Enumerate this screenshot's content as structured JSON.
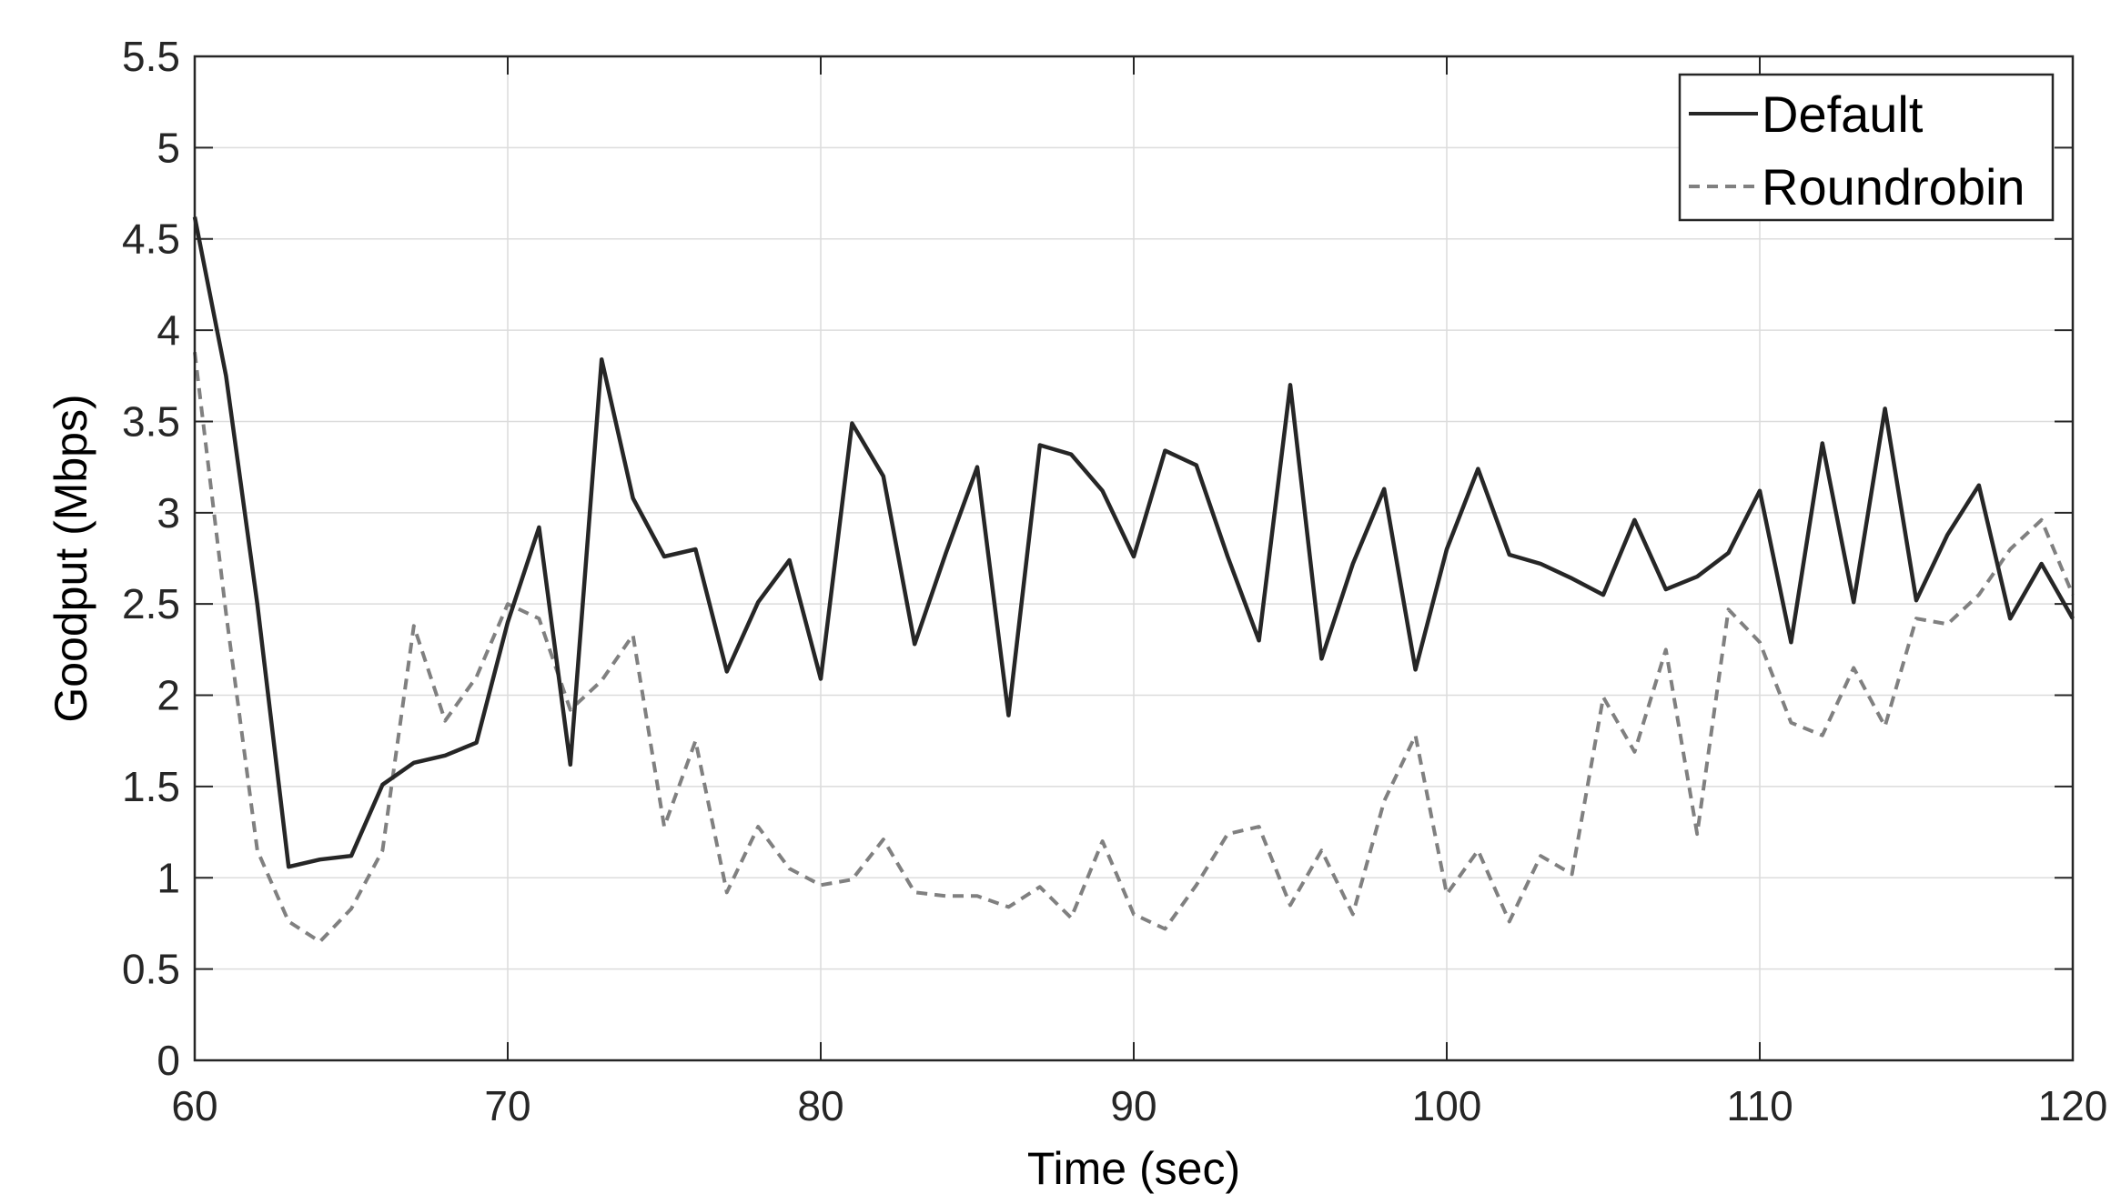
{
  "chart_data": {
    "type": "line",
    "title": "",
    "xlabel": "Time (sec)",
    "ylabel": "Goodput (Mbps)",
    "xlim": [
      60,
      120
    ],
    "ylim": [
      0,
      5.5
    ],
    "xticks": [
      60,
      70,
      80,
      90,
      100,
      110,
      120
    ],
    "yticks": [
      0,
      0.5,
      1,
      1.5,
      2,
      2.5,
      3,
      3.5,
      4,
      4.5,
      5,
      5.5
    ],
    "xtick_labels": [
      "60",
      "70",
      "80",
      "90",
      "100",
      "110",
      "120"
    ],
    "ytick_labels": [
      "0",
      "0.5",
      "1",
      "1.5",
      "2",
      "2.5",
      "3",
      "3.5",
      "4",
      "4.5",
      "5",
      "5.5"
    ],
    "grid": true,
    "legend_position": "top-right",
    "x": [
      60,
      61,
      62,
      63,
      64,
      65,
      66,
      67,
      68,
      69,
      70,
      71,
      72,
      73,
      74,
      75,
      76,
      77,
      78,
      79,
      80,
      81,
      82,
      83,
      84,
      85,
      86,
      87,
      88,
      89,
      90,
      91,
      92,
      93,
      94,
      95,
      96,
      97,
      98,
      99,
      100,
      101,
      102,
      103,
      104,
      105,
      106,
      107,
      108,
      109,
      110,
      111,
      112,
      113,
      114,
      115,
      116,
      117,
      118,
      119,
      120
    ],
    "series": [
      {
        "name": "Default",
        "color": "#262626",
        "style": "solid",
        "values": [
          4.62,
          3.75,
          2.5,
          1.06,
          1.1,
          1.12,
          1.51,
          1.63,
          1.67,
          1.74,
          2.4,
          2.92,
          1.62,
          3.84,
          3.08,
          2.76,
          2.8,
          2.13,
          2.51,
          2.74,
          2.09,
          3.49,
          3.2,
          2.28,
          2.78,
          3.25,
          1.89,
          3.37,
          3.32,
          3.12,
          2.76,
          3.34,
          3.26,
          2.76,
          2.3,
          3.7,
          2.2,
          2.72,
          3.13,
          2.14,
          2.8,
          3.24,
          2.77,
          2.72,
          2.64,
          2.55,
          2.96,
          2.58,
          2.65,
          2.78,
          3.12,
          2.29,
          3.38,
          2.51,
          3.57,
          2.52,
          2.88,
          3.15,
          2.42,
          2.72,
          2.42
        ]
      },
      {
        "name": "Roundrobin",
        "color": "#808080",
        "style": "dashed",
        "values": [
          3.88,
          2.45,
          1.15,
          0.76,
          0.65,
          0.83,
          1.15,
          2.38,
          1.86,
          2.1,
          2.5,
          2.42,
          1.92,
          2.08,
          2.33,
          1.28,
          1.75,
          0.92,
          1.28,
          1.05,
          0.96,
          0.99,
          1.21,
          0.92,
          0.9,
          0.9,
          0.84,
          0.95,
          0.78,
          1.2,
          0.8,
          0.72,
          0.96,
          1.24,
          1.28,
          0.85,
          1.15,
          0.8,
          1.42,
          1.78,
          0.91,
          1.15,
          0.76,
          1.12,
          1.02,
          1.99,
          1.69,
          2.25,
          1.24,
          2.47,
          2.29,
          1.85,
          1.78,
          2.15,
          1.83,
          2.42,
          2.39,
          2.55,
          2.8,
          2.96,
          2.55
        ]
      }
    ]
  }
}
